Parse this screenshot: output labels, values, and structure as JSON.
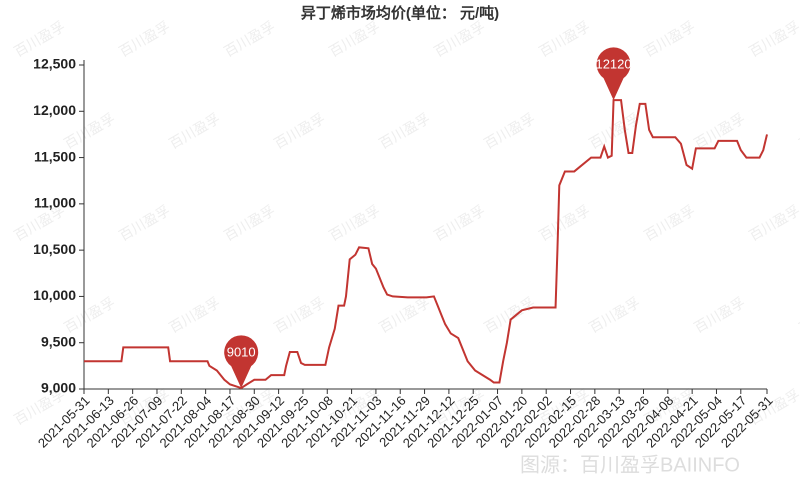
{
  "chart_data": {
    "type": "line",
    "title": "异丁烯市场均价(单位：  元/吨)",
    "watermark": "百川盈孚",
    "source_note": "图源：百川盈孚BAIINFO",
    "series": [
      {
        "name": "异丁烯",
        "color": "#c23531",
        "x": [
          "2021-05-31",
          "2021-06-20",
          "2021-06-21",
          "2021-07-15",
          "2021-07-16",
          "2021-08-05",
          "2021-08-06",
          "2021-08-10",
          "2021-08-14",
          "2021-08-17",
          "2021-08-23",
          "2021-08-26",
          "2021-08-30",
          "2021-09-05",
          "2021-09-08",
          "2021-09-15",
          "2021-09-16",
          "2021-09-18",
          "2021-09-22",
          "2021-09-24",
          "2021-09-26",
          "2021-10-07",
          "2021-10-09",
          "2021-10-12",
          "2021-10-14",
          "2021-10-17",
          "2021-10-18",
          "2021-10-20",
          "2021-10-23",
          "2021-10-25",
          "2021-10-30",
          "2021-11-01",
          "2021-11-03",
          "2021-11-05",
          "2021-11-07",
          "2021-11-09",
          "2021-11-12",
          "2021-11-20",
          "2021-11-30",
          "2021-12-04",
          "2021-12-06",
          "2021-12-08",
          "2021-12-10",
          "2021-12-13",
          "2021-12-17",
          "2021-12-20",
          "2021-12-22",
          "2021-12-26",
          "2021-12-30",
          "2022-01-03",
          "2022-01-05",
          "2022-01-08",
          "2022-01-10",
          "2022-01-12",
          "2022-01-14",
          "2022-01-17",
          "2022-01-20",
          "2022-01-26",
          "2022-02-07",
          "2022-02-08",
          "2022-02-09",
          "2022-02-12",
          "2022-02-17",
          "2022-02-20",
          "2022-02-26",
          "2022-03-03",
          "2022-03-05",
          "2022-03-07",
          "2022-03-09",
          "2022-03-10",
          "2022-03-14",
          "2022-03-16",
          "2022-03-18",
          "2022-03-20",
          "2022-03-22",
          "2022-03-24",
          "2022-03-27",
          "2022-03-29",
          "2022-03-31",
          "2022-04-12",
          "2022-04-15",
          "2022-04-18",
          "2022-04-21",
          "2022-04-23",
          "2022-05-03",
          "2022-05-05",
          "2022-05-15",
          "2022-05-17",
          "2022-05-20",
          "2022-05-27",
          "2022-05-29",
          "2022-05-31"
        ],
        "values": [
          9300,
          9300,
          9450,
          9450,
          9300,
          9300,
          9250,
          9200,
          9100,
          9050,
          9010,
          9050,
          9100,
          9100,
          9150,
          9150,
          9250,
          9400,
          9400,
          9280,
          9260,
          9260,
          9450,
          9650,
          9900,
          9900,
          10000,
          10400,
          10450,
          10530,
          10520,
          10350,
          10300,
          10200,
          10100,
          10020,
          10000,
          9990,
          9990,
          10000,
          9900,
          9800,
          9700,
          9600,
          9550,
          9400,
          9300,
          9200,
          9150,
          9100,
          9070,
          9070,
          9300,
          9500,
          9750,
          9800,
          9850,
          9880,
          9880,
          10500,
          11200,
          11350,
          11350,
          11400,
          11500,
          11500,
          11620,
          11500,
          11520,
          12120,
          12120,
          11800,
          11550,
          11550,
          11850,
          12080,
          12080,
          11800,
          11720,
          11720,
          11650,
          11420,
          11380,
          11600,
          11600,
          11680,
          11680,
          11580,
          11500,
          11500,
          11580,
          11750
        ]
      }
    ],
    "markers": [
      {
        "x": "2021-08-23",
        "value": 9010
      },
      {
        "x": "2022-03-10",
        "value": 12120
      }
    ],
    "xlim": [
      "2021-05-31",
      "2022-05-31"
    ],
    "xticks": [
      "2021-05-31",
      "2021-06-13",
      "2021-06-26",
      "2021-07-09",
      "2021-07-22",
      "2021-08-04",
      "2021-08-17",
      "2021-08-30",
      "2021-09-12",
      "2021-09-25",
      "2021-10-08",
      "2021-10-21",
      "2021-11-03",
      "2021-11-16",
      "2021-11-29",
      "2021-12-12",
      "2021-12-25",
      "2022-01-07",
      "2022-01-20",
      "2022-02-02",
      "2022-02-15",
      "2022-02-28",
      "2022-03-13",
      "2022-03-26",
      "2022-04-08",
      "2022-04-21",
      "2022-05-04",
      "2022-05-17",
      "2022-05-31"
    ],
    "ylim": [
      9000,
      12500
    ],
    "yticks": [
      {
        "value": 9000,
        "label": "9,000"
      },
      {
        "value": 9500,
        "label": "9,500"
      },
      {
        "value": 10000,
        "label": "10,000"
      },
      {
        "value": 10500,
        "label": "10,500"
      },
      {
        "value": 11000,
        "label": "11,000"
      },
      {
        "value": 11500,
        "label": "11,500"
      },
      {
        "value": 12000,
        "label": "12,000"
      },
      {
        "value": 12500,
        "label": "12,500"
      }
    ]
  }
}
